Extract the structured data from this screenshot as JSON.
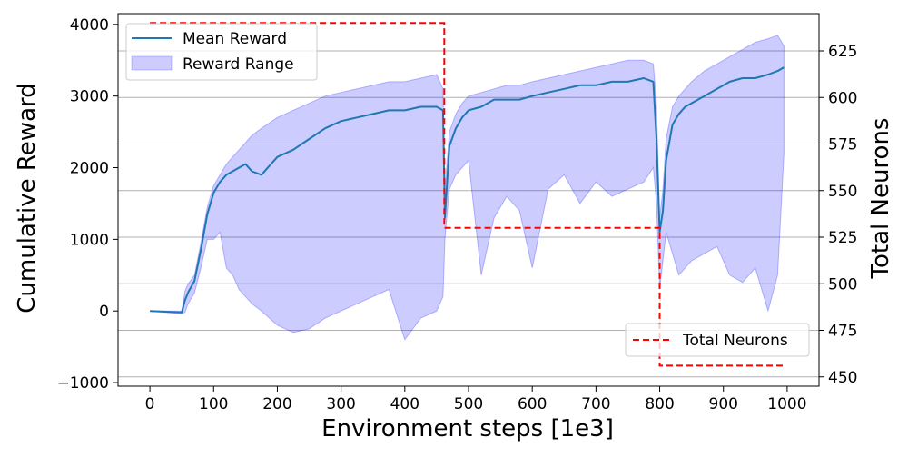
{
  "chart_data": {
    "type": "line",
    "title": "",
    "xlabel": "Environment steps [1e3]",
    "ylabel_left": "Cumulative Reward",
    "ylabel_right": "Total Neurons",
    "xlim": [
      -50,
      1050
    ],
    "ylim_left": [
      -1050,
      4150
    ],
    "ylim_right": [
      445,
      645
    ],
    "x_ticks": [
      0,
      100,
      200,
      300,
      400,
      500,
      600,
      700,
      800,
      900,
      1000
    ],
    "x_tick_labels": [
      "0",
      "100",
      "200",
      "300",
      "400",
      "500",
      "600",
      "700",
      "800",
      "900",
      "1000"
    ],
    "y_left_ticks": [
      -1000,
      0,
      1000,
      2000,
      3000,
      4000
    ],
    "y_left_tick_labels": [
      "−1000",
      "0",
      "1000",
      "2000",
      "3000",
      "4000"
    ],
    "y_right_ticks": [
      450,
      475,
      500,
      525,
      550,
      575,
      600,
      625
    ],
    "y_right_tick_labels": [
      "450",
      "475",
      "500",
      "525",
      "550",
      "575",
      "600",
      "625"
    ],
    "grid": "horizontal (right axis)",
    "legends": [
      {
        "placement": "top-left",
        "entries": [
          "Mean Reward",
          "Reward Range"
        ]
      },
      {
        "placement": "bottom-right",
        "entries": [
          "Total Neurons"
        ]
      }
    ],
    "series": [
      {
        "name": "Mean Reward",
        "axis": "left",
        "color": "#1f77b4",
        "x": [
          0,
          50,
          55,
          60,
          70,
          80,
          90,
          100,
          110,
          120,
          130,
          140,
          150,
          160,
          175,
          200,
          225,
          250,
          275,
          300,
          325,
          350,
          375,
          400,
          425,
          450,
          460,
          463,
          470,
          480,
          490,
          500,
          520,
          540,
          560,
          580,
          600,
          625,
          650,
          675,
          700,
          725,
          750,
          775,
          790,
          795,
          800,
          805,
          810,
          820,
          830,
          840,
          850,
          870,
          890,
          910,
          930,
          950,
          970,
          985,
          995
        ],
        "values": [
          0,
          -20,
          150,
          260,
          420,
          850,
          1350,
          1650,
          1800,
          1900,
          1950,
          2000,
          2050,
          1950,
          1900,
          2150,
          2250,
          2400,
          2550,
          2650,
          2700,
          2750,
          2800,
          2800,
          2850,
          2850,
          2800,
          1300,
          2300,
          2550,
          2700,
          2800,
          2850,
          2950,
          2950,
          2950,
          3000,
          3050,
          3100,
          3150,
          3150,
          3200,
          3200,
          3250,
          3200,
          2400,
          1100,
          1400,
          2100,
          2600,
          2750,
          2850,
          2900,
          3000,
          3100,
          3200,
          3250,
          3250,
          3300,
          3350,
          3400
        ]
      },
      {
        "name": "Reward Range",
        "axis": "left",
        "type": "area",
        "color": "#0000ff",
        "opacity": 0.2,
        "x": [
          0,
          50,
          55,
          60,
          70,
          80,
          90,
          100,
          110,
          120,
          130,
          140,
          150,
          160,
          175,
          200,
          225,
          250,
          275,
          300,
          325,
          350,
          375,
          400,
          425,
          450,
          460,
          463,
          470,
          480,
          490,
          500,
          520,
          540,
          560,
          580,
          600,
          625,
          650,
          675,
          700,
          725,
          750,
          775,
          790,
          795,
          800,
          805,
          810,
          820,
          830,
          840,
          850,
          870,
          890,
          910,
          930,
          950,
          970,
          985,
          995
        ],
        "upper": [
          0,
          0,
          280,
          380,
          500,
          950,
          1450,
          1750,
          1900,
          2050,
          2150,
          2250,
          2350,
          2450,
          2550,
          2700,
          2800,
          2900,
          3000,
          3050,
          3100,
          3150,
          3200,
          3200,
          3250,
          3300,
          3100,
          1700,
          2500,
          2750,
          2900,
          3000,
          3050,
          3100,
          3150,
          3150,
          3200,
          3250,
          3300,
          3350,
          3400,
          3450,
          3500,
          3500,
          3450,
          2900,
          1300,
          1700,
          2400,
          2850,
          3000,
          3100,
          3200,
          3350,
          3450,
          3550,
          3650,
          3750,
          3800,
          3850,
          3700
        ],
        "lower": [
          0,
          -40,
          -20,
          100,
          250,
          600,
          1000,
          1000,
          1100,
          600,
          500,
          300,
          200,
          100,
          0,
          -200,
          -300,
          -250,
          -100,
          0,
          100,
          200,
          300,
          -400,
          -100,
          0,
          200,
          1000,
          1700,
          1900,
          2000,
          2100,
          500,
          1300,
          1600,
          1400,
          600,
          1700,
          1900,
          1500,
          1800,
          1600,
          1700,
          1800,
          2000,
          1500,
          300,
          700,
          1100,
          800,
          500,
          600,
          700,
          800,
          900,
          500,
          400,
          600,
          0,
          500,
          2200
        ]
      },
      {
        "name": "Total Neurons",
        "axis": "right",
        "style": "dashed",
        "color": "#ff0000",
        "x": [
          0,
          462,
          462,
          800,
          800,
          995
        ],
        "values": [
          640,
          640,
          530,
          530,
          456,
          456
        ]
      }
    ]
  }
}
